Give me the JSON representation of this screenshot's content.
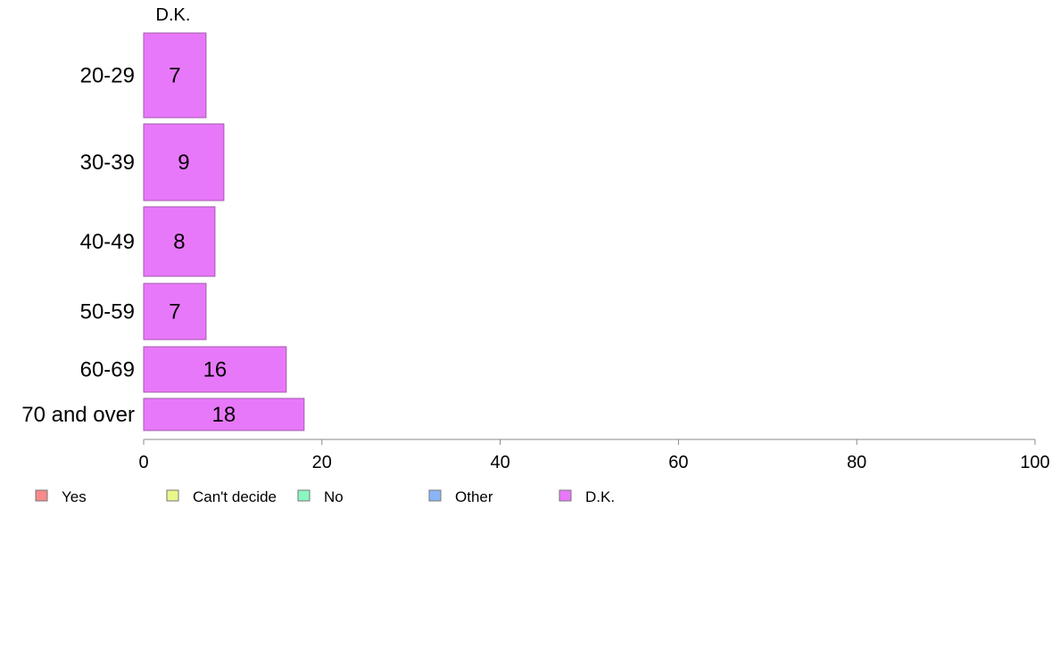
{
  "chart_data": {
    "type": "bar",
    "orientation": "horizontal",
    "title": "",
    "series_label": "D.K.",
    "categories": [
      "20-29",
      "30-39",
      "40-49",
      "50-59",
      "60-69",
      "70 and over"
    ],
    "series": [
      {
        "name": "D.K.",
        "color": "#e878fa",
        "values": [
          7,
          9,
          8,
          7,
          16,
          18
        ],
        "labels": [
          "7",
          "9",
          "8",
          "7",
          "16",
          "18"
        ]
      }
    ],
    "xlim": [
      0,
      100
    ],
    "xticks": [
      "0",
      "20",
      "40",
      "60",
      "80",
      "100"
    ],
    "xlabel": "",
    "ylabel": "",
    "grid": false,
    "legend_position": "bottom",
    "legend": [
      {
        "label": "Yes",
        "color": "#f88a8a"
      },
      {
        "label": "Can't decide",
        "color": "#eaf78a"
      },
      {
        "label": "No",
        "color": "#8af7c2"
      },
      {
        "label": "Other",
        "color": "#8ab6f7"
      },
      {
        "label": "D.K.",
        "color": "#e878fa"
      }
    ]
  }
}
